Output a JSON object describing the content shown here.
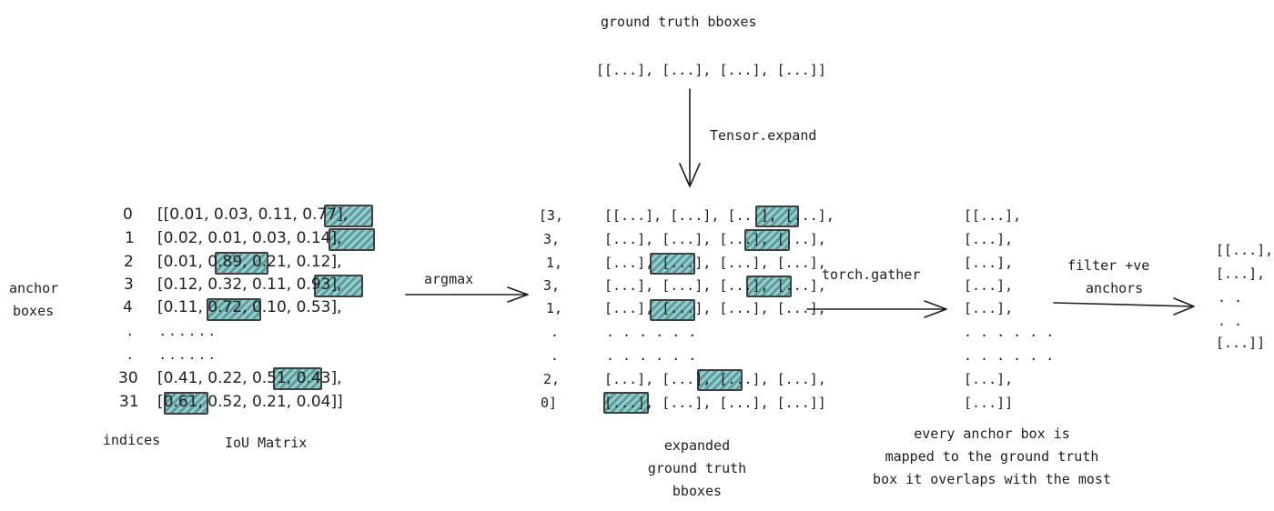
{
  "gt": {
    "title": "ground truth bboxes",
    "list": "[[...], [...], [...], [...]]",
    "expand_label": "Tensor.expand"
  },
  "anchor_label": [
    "anchor",
    "boxes"
  ],
  "indices": {
    "values": [
      "0",
      "1",
      "2",
      "3",
      "4",
      ".",
      ".",
      "30",
      "31"
    ],
    "caption": "indices"
  },
  "iou": {
    "rows": [
      "[[0.01, 0.03, 0.11, 0.77],",
      "[0.02, 0.01, 0.03, 0.14],",
      "[0.01, 0.89, 0.21, 0.12],",
      "[0.12, 0.32, 0.11, 0.93],",
      "[0.11, 0.72, 0.10, 0.53],",
      ". . . . . .",
      ". . . . . .",
      "[0.41, 0.22, 0.51, 0.43],",
      "[0.61, 0.52, 0.21, 0.04]]"
    ],
    "caption": "IoU Matrix"
  },
  "argmax_label": "argmax",
  "argmax_values": [
    "[3,",
    "3,",
    "1,",
    "3,",
    "1,",
    ".",
    ".",
    "2,",
    "0]"
  ],
  "expanded": {
    "rows": [
      "[[...], [...], [...], [...],",
      "[...], [...], [...], [...],",
      "[...], [...], [...], [...],",
      "[...], [...], [...], [...],",
      "[...], [...], [...], [...],",
      ". . . . . .",
      ". . . . . .",
      "[...], [...], [...], [...],",
      "[...], [...], [...], [...]]"
    ],
    "caption": [
      "expanded",
      "ground truth",
      "bboxes"
    ]
  },
  "gather_label": "torch.gather",
  "gathered": {
    "rows": [
      "[[...],",
      "[...],",
      "[...],",
      "[...],",
      "[...],",
      ". . . . . .",
      ". . . . . .",
      "[...],",
      "[...]]"
    ],
    "caption": [
      "every anchor box is",
      "mapped to the ground truth",
      "box it overlaps with the most"
    ]
  },
  "filter_label": [
    "filter +ve",
    "anchors"
  ],
  "filtered": [
    "[[...],",
    "[...],",
    ". .",
    ". .",
    "[...]]"
  ],
  "colors": {
    "highlight": "#3d8f90",
    "ink": "#1e1e1e"
  }
}
